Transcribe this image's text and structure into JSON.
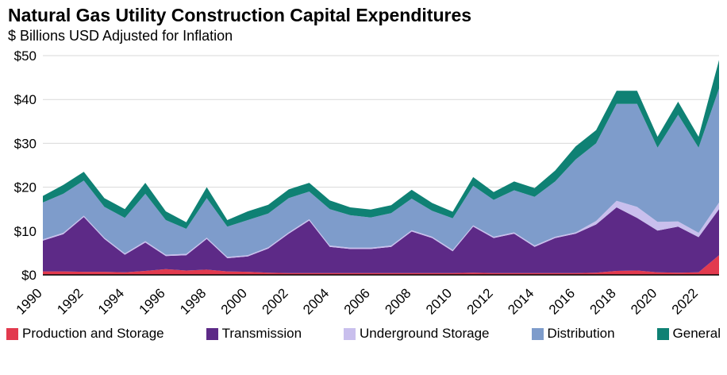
{
  "header": {
    "title": "Natural Gas Utility Construction Capital Expenditures",
    "subtitle": "$ Billions USD Adjusted for Inflation"
  },
  "chart_data": {
    "type": "area",
    "stacked": true,
    "title": "Natural Gas Utility Construction Capital Expenditures",
    "subtitle": "$ Billions USD Adjusted for Inflation",
    "x": [
      1990,
      1991,
      1992,
      1993,
      1994,
      1995,
      1996,
      1997,
      1998,
      1999,
      2000,
      2001,
      2002,
      2003,
      2004,
      2005,
      2006,
      2007,
      2008,
      2009,
      2010,
      2011,
      2012,
      2013,
      2014,
      2015,
      2016,
      2017,
      2018,
      2019,
      2020,
      2021,
      2022,
      2023
    ],
    "x_tick_labels": [
      "1990",
      "1992",
      "1994",
      "1996",
      "1998",
      "2000",
      "2002",
      "2004",
      "2006",
      "2008",
      "2010",
      "2012",
      "2014",
      "2016",
      "2018",
      "2020",
      "2022"
    ],
    "ylim": [
      0,
      50
    ],
    "y_ticks": [
      0,
      10,
      20,
      30,
      40,
      50
    ],
    "y_tick_prefix": "$",
    "grid": "horizontal",
    "legend_position": "bottom",
    "series": [
      {
        "name": "Production and Storage",
        "color": "#e23a4e",
        "values": [
          0.8,
          0.8,
          0.7,
          0.7,
          0.6,
          0.9,
          1.3,
          1.0,
          1.2,
          0.8,
          0.7,
          0.5,
          0.4,
          0.4,
          0.4,
          0.4,
          0.4,
          0.4,
          0.4,
          0.4,
          0.4,
          0.5,
          0.4,
          0.4,
          0.4,
          0.4,
          0.4,
          0.5,
          0.9,
          1.0,
          0.6,
          0.5,
          0.6,
          4.5
        ]
      },
      {
        "name": "Transmission",
        "color": "#5d2a87",
        "values": [
          7.0,
          8.5,
          12.5,
          7.5,
          4.0,
          6.5,
          3.0,
          3.5,
          7.0,
          3.0,
          3.5,
          5.5,
          9.0,
          12.0,
          6.0,
          5.5,
          5.5,
          6.0,
          9.5,
          8.0,
          5.0,
          10.5,
          8.0,
          9.0,
          6.0,
          8.0,
          9.0,
          11.0,
          14.5,
          12.0,
          9.5,
          10.5,
          8.0,
          10.5
        ]
      },
      {
        "name": "Underground Storage",
        "color": "#c9bfed",
        "values": [
          0.3,
          0.3,
          0.3,
          0.3,
          0.3,
          0.3,
          0.3,
          0.3,
          0.3,
          0.3,
          0.3,
          0.3,
          0.3,
          0.3,
          0.3,
          0.3,
          0.3,
          0.3,
          0.3,
          0.3,
          0.3,
          0.3,
          0.3,
          0.3,
          0.3,
          0.3,
          0.3,
          0.8,
          1.5,
          2.5,
          2.0,
          1.2,
          1.0,
          1.5
        ]
      },
      {
        "name": "Distribution",
        "color": "#7e9ccb",
        "values": [
          8.4,
          8.9,
          8.0,
          7.0,
          8.1,
          10.8,
          7.9,
          5.7,
          9.0,
          6.9,
          8.0,
          7.7,
          7.8,
          6.3,
          8.3,
          7.4,
          6.9,
          7.4,
          7.2,
          5.9,
          7.2,
          9.0,
          8.4,
          9.6,
          11.1,
          12.6,
          16.6,
          17.7,
          22.1,
          23.5,
          16.9,
          24.3,
          19.4,
          26.0
        ]
      },
      {
        "name": "General",
        "color": "#0f8174",
        "values": [
          1.5,
          2.0,
          2.0,
          2.0,
          2.0,
          2.5,
          2.0,
          1.5,
          2.5,
          1.5,
          2.0,
          2.0,
          2.0,
          2.0,
          2.0,
          1.8,
          1.8,
          1.8,
          2.0,
          1.8,
          1.5,
          2.0,
          1.8,
          2.0,
          2.0,
          2.5,
          3.0,
          3.0,
          3.0,
          3.0,
          2.5,
          3.0,
          2.5,
          6.5
        ]
      }
    ]
  }
}
